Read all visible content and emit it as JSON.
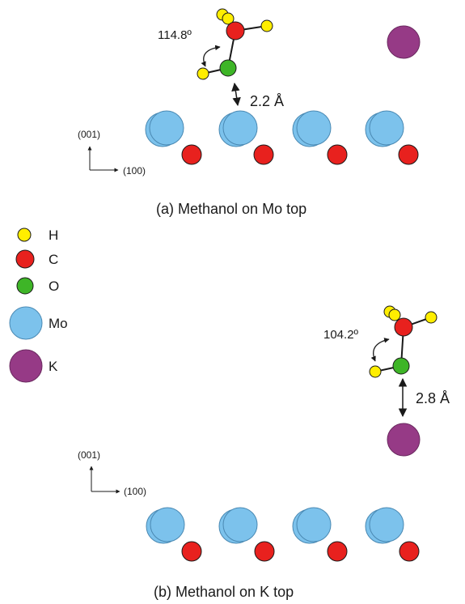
{
  "panel_a": {
    "caption": "(a) Methanol on Mo top",
    "angle": "114.8º",
    "distance": "2.2 Å",
    "axis_vertical": "(001)",
    "axis_horizontal": "(100)"
  },
  "panel_b": {
    "caption": "(b) Methanol on K top",
    "angle": "104.2º",
    "distance": "2.8 Å",
    "axis_vertical": "(001)",
    "axis_horizontal": "(100)"
  },
  "legend": [
    {
      "symbol": "H",
      "label": "H",
      "color": "#ffee00"
    },
    {
      "symbol": "C",
      "label": "C",
      "color": "#e8211e"
    },
    {
      "symbol": "O",
      "label": "O",
      "color": "#3eb527"
    },
    {
      "symbol": "Mo",
      "label": "Mo",
      "color": "#7cc2ec"
    },
    {
      "symbol": "K",
      "label": "K",
      "color": "#963a86"
    }
  ]
}
